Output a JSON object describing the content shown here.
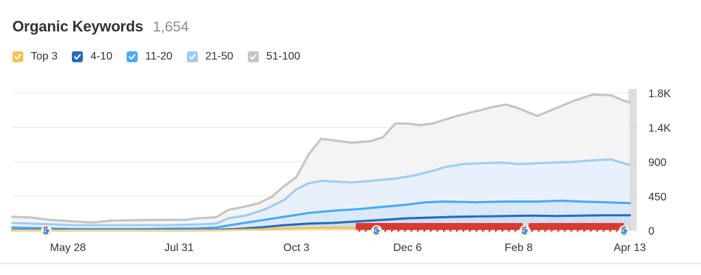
{
  "header": {
    "title": "Organic Keywords",
    "count": "1,654"
  },
  "legend": [
    {
      "label": "Top 3",
      "color": "#f5c355",
      "icon": "check-icon"
    },
    {
      "label": "4-10",
      "color": "#2a6ab8",
      "icon": "check-icon"
    },
    {
      "label": "11-20",
      "color": "#4ba9ef",
      "icon": "check-icon"
    },
    {
      "label": "21-50",
      "color": "#9fcbf1",
      "icon": "check-icon"
    },
    {
      "label": "51-100",
      "color": "#c4c4c4",
      "icon": "check-icon"
    }
  ],
  "chart_data": {
    "type": "area",
    "x_labels": [
      "May 28",
      "Jul 31",
      "Oct 3",
      "Dec 6",
      "Feb 8",
      "Apr 13"
    ],
    "y_ticks": [
      "1.8K",
      "1.4K",
      "900",
      "450",
      "0"
    ],
    "y_tick_values": [
      1800,
      1350,
      900,
      450,
      0
    ],
    "ylim": [
      0,
      1800
    ],
    "grid": true,
    "x_index_range": [
      0,
      100
    ],
    "x_label_positions": [
      9,
      27,
      46,
      64,
      82,
      100
    ],
    "series": [
      {
        "name": "51-100",
        "color": "#c4c4c4",
        "fill": "#f2f2f2",
        "points": [
          [
            0,
            180
          ],
          [
            3,
            170
          ],
          [
            6,
            140
          ],
          [
            10,
            120
          ],
          [
            13,
            105
          ],
          [
            16,
            130
          ],
          [
            20,
            135
          ],
          [
            24,
            140
          ],
          [
            28,
            140
          ],
          [
            30,
            160
          ],
          [
            33,
            175
          ],
          [
            35,
            270
          ],
          [
            38,
            320
          ],
          [
            40,
            360
          ],
          [
            42,
            440
          ],
          [
            44,
            580
          ],
          [
            46,
            700
          ],
          [
            48,
            1000
          ],
          [
            50,
            1200
          ],
          [
            52,
            1180
          ],
          [
            55,
            1150
          ],
          [
            58,
            1170
          ],
          [
            60,
            1220
          ],
          [
            62,
            1400
          ],
          [
            64,
            1400
          ],
          [
            66,
            1380
          ],
          [
            68,
            1400
          ],
          [
            70,
            1450
          ],
          [
            72,
            1500
          ],
          [
            75,
            1560
          ],
          [
            78,
            1620
          ],
          [
            80,
            1650
          ],
          [
            82,
            1600
          ],
          [
            85,
            1500
          ],
          [
            88,
            1600
          ],
          [
            91,
            1700
          ],
          [
            94,
            1780
          ],
          [
            97,
            1770
          ],
          [
            99,
            1700
          ],
          [
            100,
            1680
          ]
        ]
      },
      {
        "name": "21-50",
        "color": "#9fcbf1",
        "fill": "#e5f0fb",
        "points": [
          [
            0,
            100
          ],
          [
            5,
            85
          ],
          [
            10,
            70
          ],
          [
            15,
            70
          ],
          [
            20,
            70
          ],
          [
            25,
            70
          ],
          [
            30,
            80
          ],
          [
            33,
            90
          ],
          [
            35,
            160
          ],
          [
            38,
            200
          ],
          [
            41,
            280
          ],
          [
            44,
            400
          ],
          [
            46,
            540
          ],
          [
            48,
            620
          ],
          [
            50,
            650
          ],
          [
            55,
            630
          ],
          [
            58,
            650
          ],
          [
            62,
            680
          ],
          [
            65,
            720
          ],
          [
            68,
            780
          ],
          [
            70,
            830
          ],
          [
            73,
            870
          ],
          [
            76,
            880
          ],
          [
            79,
            890
          ],
          [
            82,
            870
          ],
          [
            85,
            880
          ],
          [
            88,
            890
          ],
          [
            91,
            900
          ],
          [
            94,
            920
          ],
          [
            97,
            930
          ],
          [
            99,
            880
          ],
          [
            100,
            860
          ]
        ]
      },
      {
        "name": "11-20",
        "color": "#4ba9ef",
        "fill": "#d6e8f8",
        "points": [
          [
            0,
            40
          ],
          [
            10,
            20
          ],
          [
            20,
            20
          ],
          [
            30,
            30
          ],
          [
            33,
            40
          ],
          [
            36,
            80
          ],
          [
            40,
            130
          ],
          [
            44,
            180
          ],
          [
            48,
            230
          ],
          [
            52,
            260
          ],
          [
            56,
            280
          ],
          [
            60,
            310
          ],
          [
            64,
            340
          ],
          [
            67,
            370
          ],
          [
            70,
            380
          ],
          [
            75,
            370
          ],
          [
            80,
            380
          ],
          [
            85,
            380
          ],
          [
            89,
            390
          ],
          [
            92,
            380
          ],
          [
            96,
            370
          ],
          [
            100,
            360
          ]
        ]
      },
      {
        "name": "4-10",
        "color": "#2a6ab8",
        "fill": "#c9dcf1",
        "points": [
          [
            0,
            8
          ],
          [
            20,
            8
          ],
          [
            33,
            10
          ],
          [
            36,
            20
          ],
          [
            40,
            40
          ],
          [
            44,
            70
          ],
          [
            48,
            90
          ],
          [
            52,
            100
          ],
          [
            56,
            120
          ],
          [
            60,
            140
          ],
          [
            64,
            160
          ],
          [
            68,
            170
          ],
          [
            72,
            180
          ],
          [
            76,
            185
          ],
          [
            80,
            190
          ],
          [
            84,
            195
          ],
          [
            88,
            190
          ],
          [
            92,
            195
          ],
          [
            96,
            200
          ],
          [
            100,
            200
          ]
        ]
      },
      {
        "name": "Top 3",
        "color": "#f5c355",
        "fill": "#fbe6b5",
        "points": [
          [
            0,
            0
          ],
          [
            30,
            0
          ],
          [
            34,
            3
          ],
          [
            38,
            10
          ],
          [
            42,
            20
          ],
          [
            46,
            30
          ],
          [
            50,
            35
          ],
          [
            54,
            35
          ],
          [
            58,
            33
          ],
          [
            62,
            30
          ],
          [
            66,
            30
          ],
          [
            70,
            30
          ],
          [
            75,
            28
          ],
          [
            80,
            28
          ],
          [
            85,
            26
          ],
          [
            90,
            25
          ],
          [
            95,
            25
          ],
          [
            100,
            25
          ]
        ]
      }
    ],
    "event_markers": {
      "google_icon_positions": [
        5.5,
        59,
        83,
        100
      ],
      "note_marker_color": "#d93a2f",
      "note_marker_ranges": [
        [
          56.5,
          82
        ],
        [
          84.5,
          99
        ]
      ]
    }
  }
}
